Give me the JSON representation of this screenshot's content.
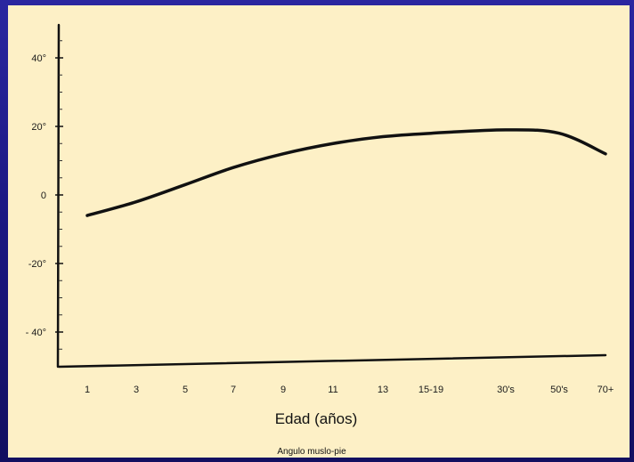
{
  "chart_data": {
    "type": "line",
    "title": "",
    "xlabel": "Edad (años)",
    "ylabel": "",
    "caption": "Angulo muslo-pie",
    "categories": [
      "1",
      "3",
      "5",
      "7",
      "9",
      "11",
      "13",
      "15-19",
      "30's",
      "50's",
      "70+"
    ],
    "y_ticks": [
      "40°",
      "20°",
      "0",
      "-20°",
      "- 40°"
    ],
    "y_tick_values": [
      40,
      20,
      0,
      -20,
      -40
    ],
    "ylim": [
      -50,
      50
    ],
    "series": [
      {
        "x": [
          0,
          1,
          2,
          3,
          4,
          5,
          6,
          7,
          8,
          9,
          10
        ],
        "values": [
          -6,
          -2,
          3,
          8,
          12,
          15,
          17,
          18,
          19,
          18,
          12
        ]
      }
    ],
    "grid": false,
    "colors": {
      "background": "#fdf0c6",
      "frame": "#1a1680",
      "line": "#111111"
    }
  }
}
